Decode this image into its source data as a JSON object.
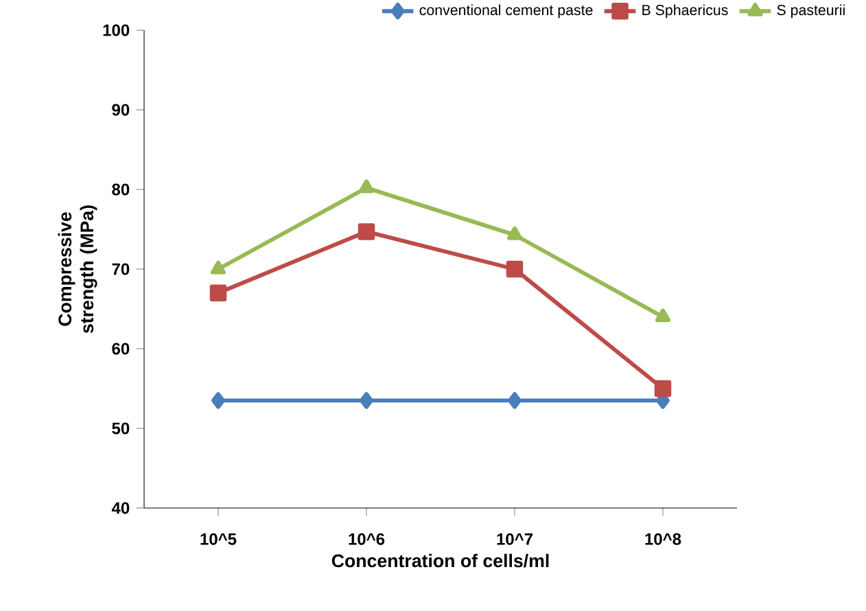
{
  "chart_data": {
    "type": "line",
    "xlabel": "Concentration of cells/ml",
    "ylabel": "Compressive strength (MPa)",
    "categories": [
      "10^5",
      "10^6",
      "10^7",
      "10^8"
    ],
    "series": [
      {
        "name": "conventional cement paste",
        "color": "#4a7ebb",
        "marker": "diamond",
        "values": [
          53.5,
          53.5,
          53.5,
          53.5
        ]
      },
      {
        "name": "B Sphaericus",
        "color": "#be4b48",
        "marker": "square",
        "values": [
          67,
          74.7,
          70,
          55
        ]
      },
      {
        "name": "S pasteurii",
        "color": "#98b954",
        "marker": "triangle",
        "values": [
          70,
          80.2,
          74.3,
          64
        ]
      }
    ],
    "ylim": [
      40,
      100
    ],
    "yticks": [
      40,
      50,
      60,
      70,
      80,
      90,
      100
    ],
    "grid": false,
    "legend": "top right"
  }
}
